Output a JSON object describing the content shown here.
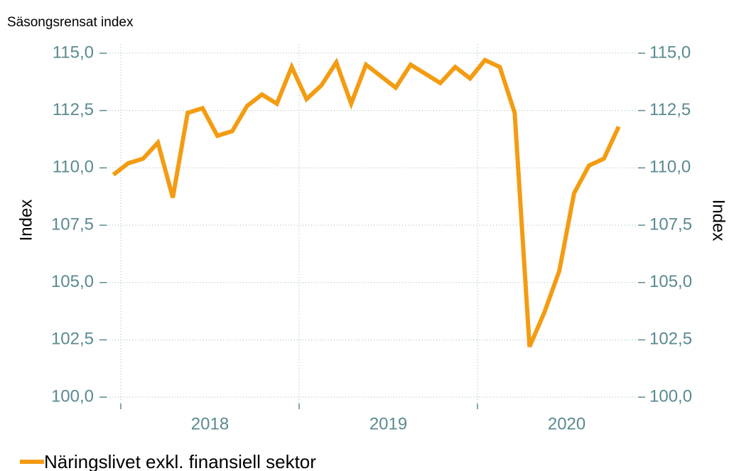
{
  "chart_data": {
    "type": "line",
    "subtitle": "Säsongsrensat index",
    "y_label": "Index",
    "y2_label": "Index",
    "categories": [
      null,
      null,
      null,
      null,
      null,
      null,
      null,
      "2018",
      null,
      null,
      null,
      null,
      null,
      null,
      null,
      null,
      null,
      null,
      null,
      "2019",
      null,
      null,
      null,
      null,
      null,
      null,
      null,
      null,
      null,
      null,
      null,
      "2020",
      null,
      null,
      null
    ],
    "series": [
      {
        "name": "Näringslivet exkl. finansiell sektor",
        "color": "#f39c12",
        "values": [
          109.7,
          110.2,
          110.4,
          111.1,
          108.7,
          112.4,
          112.6,
          111.4,
          111.6,
          112.7,
          113.2,
          112.8,
          114.4,
          113.0,
          113.6,
          114.6,
          112.8,
          114.5,
          114.0,
          113.5,
          114.5,
          114.1,
          113.7,
          114.4,
          113.9,
          114.7,
          114.4,
          112.4,
          102.2,
          103.7,
          105.5,
          108.9,
          110.1,
          110.4,
          111.8
        ]
      }
    ],
    "ylim": [
      99.6,
      115.4
    ],
    "yticks": [
      {
        "value": 100,
        "label": "100,0"
      },
      {
        "value": 102.5,
        "label": "102,5"
      },
      {
        "value": 105,
        "label": "105,0"
      },
      {
        "value": 107.5,
        "label": "107,5"
      },
      {
        "value": 110,
        "label": "110,0"
      },
      {
        "value": 112.5,
        "label": "112,5"
      },
      {
        "value": 115,
        "label": "115,0"
      }
    ],
    "grid": true
  }
}
